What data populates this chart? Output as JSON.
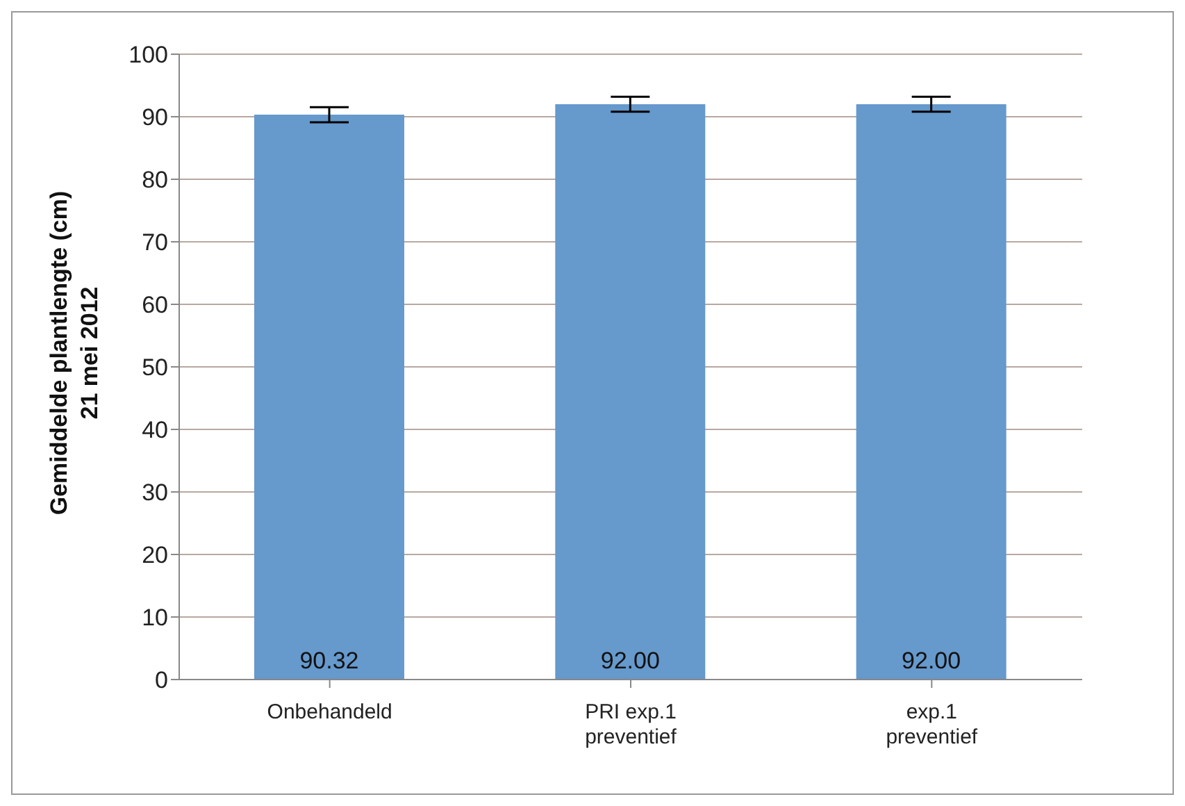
{
  "chart_data": {
    "type": "bar",
    "ylabel": "Gemiddelde plantlengte (cm)\n21 mei 2012",
    "categories": [
      "Onbehandeld",
      "PRI exp.1 preventief",
      "exp.1 preventief"
    ],
    "values": [
      90.32,
      92.0,
      92.0
    ],
    "value_labels": [
      "90.32",
      "92.00",
      "92.00"
    ],
    "errors": [
      1.2,
      1.2,
      1.2
    ],
    "color": "#6699cc",
    "ylim": [
      0,
      100
    ],
    "yticks": [
      0,
      10,
      20,
      30,
      40,
      50,
      60,
      70,
      80,
      90,
      100
    ],
    "grid": "y",
    "legend": false
  }
}
